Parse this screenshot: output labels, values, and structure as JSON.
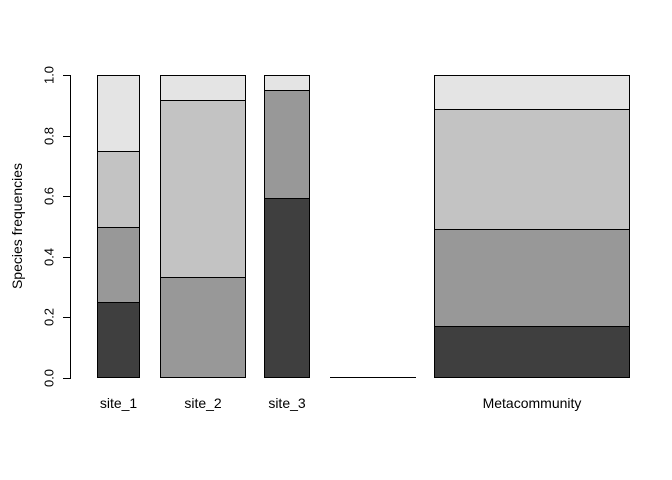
{
  "figure": {
    "background": "#ffffff",
    "foreground": "#000000"
  },
  "chart_data": {
    "type": "bar",
    "stacked": true,
    "title": "",
    "xlabel": "",
    "ylabel": "Species frequencies",
    "ylim": [
      0,
      1
    ],
    "grid": false,
    "legend": "none",
    "ytick_labels": [
      "0.0",
      "0.2",
      "0.4",
      "0.6",
      "0.8",
      "1.0"
    ],
    "ytick_values": [
      0.0,
      0.2,
      0.4,
      0.6,
      0.8,
      1.0
    ],
    "species_colors": [
      "#3f3f3f",
      "#989898",
      "#c3c3c3",
      "#e4e4e4"
    ],
    "series_note": "segments listed bottom-to-top: species1(dark) to species4(light)",
    "bars": [
      {
        "label": "site_1",
        "left": 0.0466,
        "width": 0.0741,
        "segments": [
          0.25,
          0.25,
          0.25,
          0.25
        ]
      },
      {
        "label": "site_2",
        "left": 0.1552,
        "width": 0.1483,
        "segments": [
          0,
          0.333,
          0.584,
          0.083
        ]
      },
      {
        "label": "site_3",
        "left": 0.3345,
        "width": 0.0793,
        "segments": [
          0.593,
          0.359,
          0,
          0.048
        ]
      },
      {
        "label": "",
        "left": 0.4483,
        "width": 0.1483,
        "segments": [
          0,
          0,
          0,
          0
        ]
      },
      {
        "label": "Metacommunity",
        "left": 0.6276,
        "width": 0.3379,
        "segments": [
          0.172,
          0.32,
          0.397,
          0.111
        ]
      }
    ]
  }
}
